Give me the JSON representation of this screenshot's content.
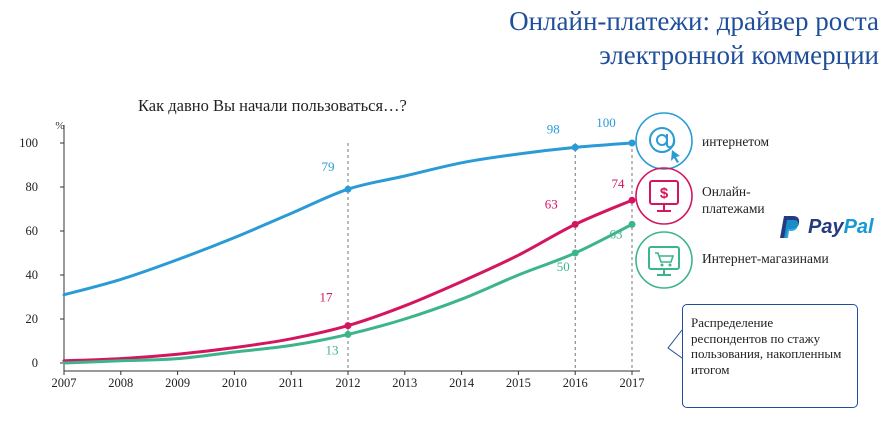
{
  "header": {
    "title_line1": "Онлайн-платежи: драйвер роста",
    "title_line2": "электронной коммерции"
  },
  "chart_data": {
    "type": "line",
    "title": "Как давно Вы начали пользоваться…?",
    "ylabel": "%",
    "xlabel": "",
    "ylim": [
      0,
      100
    ],
    "yticks": [
      0,
      20,
      40,
      60,
      80,
      100
    ],
    "xticks": [
      2007,
      2008,
      2009,
      2010,
      2011,
      2012,
      2013,
      2014,
      2015,
      2016,
      2017
    ],
    "xlim": [
      2007,
      2017
    ],
    "grid": false,
    "reference_lines_x": [
      2012,
      2016,
      2017
    ],
    "series": [
      {
        "name": "интернетом",
        "color": "#2a9bd5",
        "x": [
          2007,
          2008,
          2009,
          2010,
          2011,
          2012,
          2013,
          2014,
          2015,
          2016,
          2017
        ],
        "values": [
          31,
          38,
          47,
          57,
          68,
          79,
          85,
          91,
          95,
          98,
          100
        ],
        "labels": [
          {
            "x": 2012,
            "text": "79"
          },
          {
            "x": 2016,
            "text": "98"
          },
          {
            "x": 2017,
            "text": "100"
          }
        ]
      },
      {
        "name": "Онлайн-платежами",
        "color": "#d4155f",
        "x": [
          2007,
          2008,
          2009,
          2010,
          2011,
          2012,
          2013,
          2014,
          2015,
          2016,
          2017
        ],
        "values": [
          1,
          2,
          4,
          7,
          11,
          17,
          26,
          37,
          49,
          63,
          74
        ],
        "labels": [
          {
            "x": 2012,
            "text": "17"
          },
          {
            "x": 2016,
            "text": "63"
          },
          {
            "x": 2017,
            "text": "74"
          }
        ]
      },
      {
        "name": "Интернет-магазинами",
        "color": "#3db58a",
        "x": [
          2007,
          2008,
          2009,
          2010,
          2011,
          2012,
          2013,
          2014,
          2015,
          2016,
          2017
        ],
        "values": [
          0,
          1,
          2,
          5,
          8,
          13,
          20,
          29,
          40,
          50,
          63
        ],
        "labels": [
          {
            "x": 2012,
            "text": "13"
          },
          {
            "x": 2016,
            "text": "50"
          },
          {
            "x": 2017,
            "text": "63"
          }
        ]
      }
    ]
  },
  "legend": {
    "internet_label": "интернетом",
    "payments_label": "Онлайн-\nплатежами",
    "shops_label": "Интернет-магазинами"
  },
  "paypal": {
    "pay": "Pay",
    "pal": "Pal"
  },
  "note": {
    "text": "Распределение респондентов по стажу пользования, накопленным итогом"
  }
}
